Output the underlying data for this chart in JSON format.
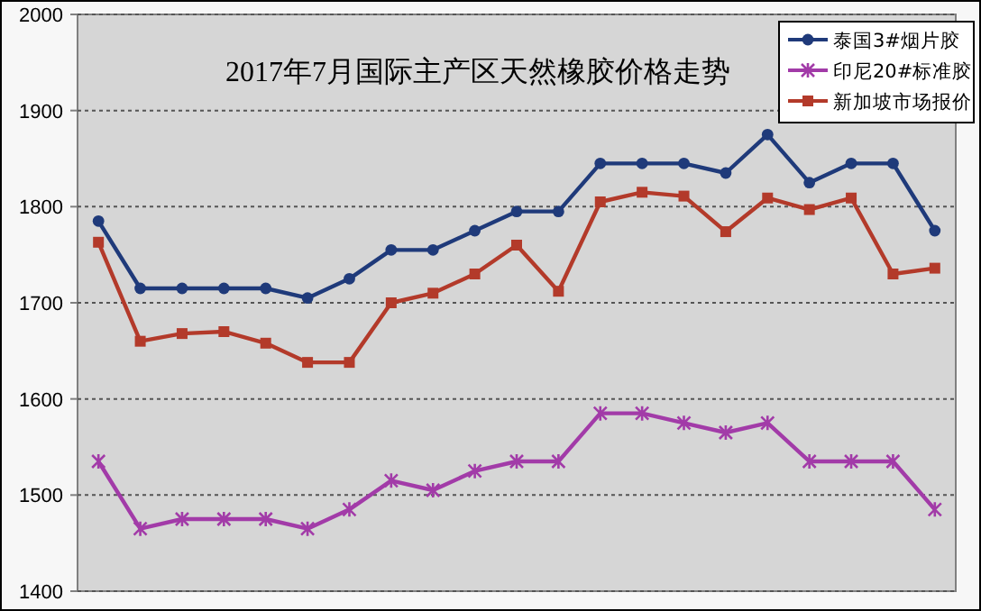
{
  "chart_data": {
    "type": "line",
    "title": "2017年7月国际主产区天然橡胶价格走势",
    "categories": [
      null,
      null,
      null,
      null,
      null,
      null,
      null,
      null,
      null,
      null,
      null,
      null,
      null,
      null,
      null,
      null,
      null,
      null,
      null,
      null,
      null
    ],
    "series": [
      {
        "name": "泰国3#烟片胶",
        "color": "#1f3a7a",
        "marker": "circle",
        "values": [
          1785,
          1715,
          1715,
          1715,
          1715,
          1705,
          1725,
          1755,
          1755,
          1775,
          1795,
          1795,
          1845,
          1845,
          1845,
          1835,
          1875,
          1825,
          1845,
          1845,
          1775
        ]
      },
      {
        "name": "印尼20#标准胶",
        "color": "#a23ba8",
        "marker": "cross",
        "values": [
          1535,
          1465,
          1475,
          1475,
          1475,
          1465,
          1485,
          1515,
          1505,
          1525,
          1535,
          1535,
          1585,
          1585,
          1575,
          1565,
          1575,
          1535,
          1535,
          1535,
          1485
        ]
      },
      {
        "name": "新加坡市场报价",
        "color": "#b33a2a",
        "marker": "square",
        "values": [
          1763,
          1660,
          1668,
          1670,
          1658,
          1638,
          1638,
          1700,
          1710,
          1730,
          1760,
          1712,
          1805,
          1815,
          1811,
          1774,
          1809,
          1797,
          1809,
          1730,
          1736
        ]
      }
    ],
    "ylim": [
      1400,
      2000
    ],
    "yticks": [
      1400,
      1500,
      1600,
      1700,
      1800,
      1900,
      2000
    ],
    "grid": "y",
    "legend": "top right",
    "line_style": "solid",
    "tick_labels": "y"
  }
}
